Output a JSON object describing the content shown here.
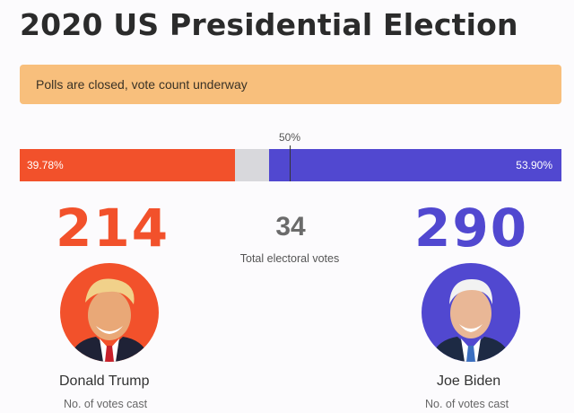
{
  "title": "2020 US Presidential Election",
  "status": "Polls are closed, vote count underway",
  "majority_label": "50%",
  "colors": {
    "trump": "#f2512b",
    "biden": "#5148d0",
    "undecided": "#d8d8dc",
    "banner": "#f8bf7c"
  },
  "popular_vote": {
    "trump_pct_label": "39.78%",
    "biden_pct_label": "53.90%",
    "trump_fraction": 0.3978,
    "biden_fraction": 0.539
  },
  "electoral": {
    "trump": "214",
    "biden": "290",
    "remaining": "34",
    "remaining_caption": "Total electoral votes"
  },
  "candidates": {
    "left": {
      "name": "Donald Trump",
      "sub": "No. of votes cast",
      "icon": "person-portrait-icon"
    },
    "right": {
      "name": "Joe Biden",
      "sub": "No. of votes cast",
      "icon": "person-portrait-icon"
    }
  }
}
